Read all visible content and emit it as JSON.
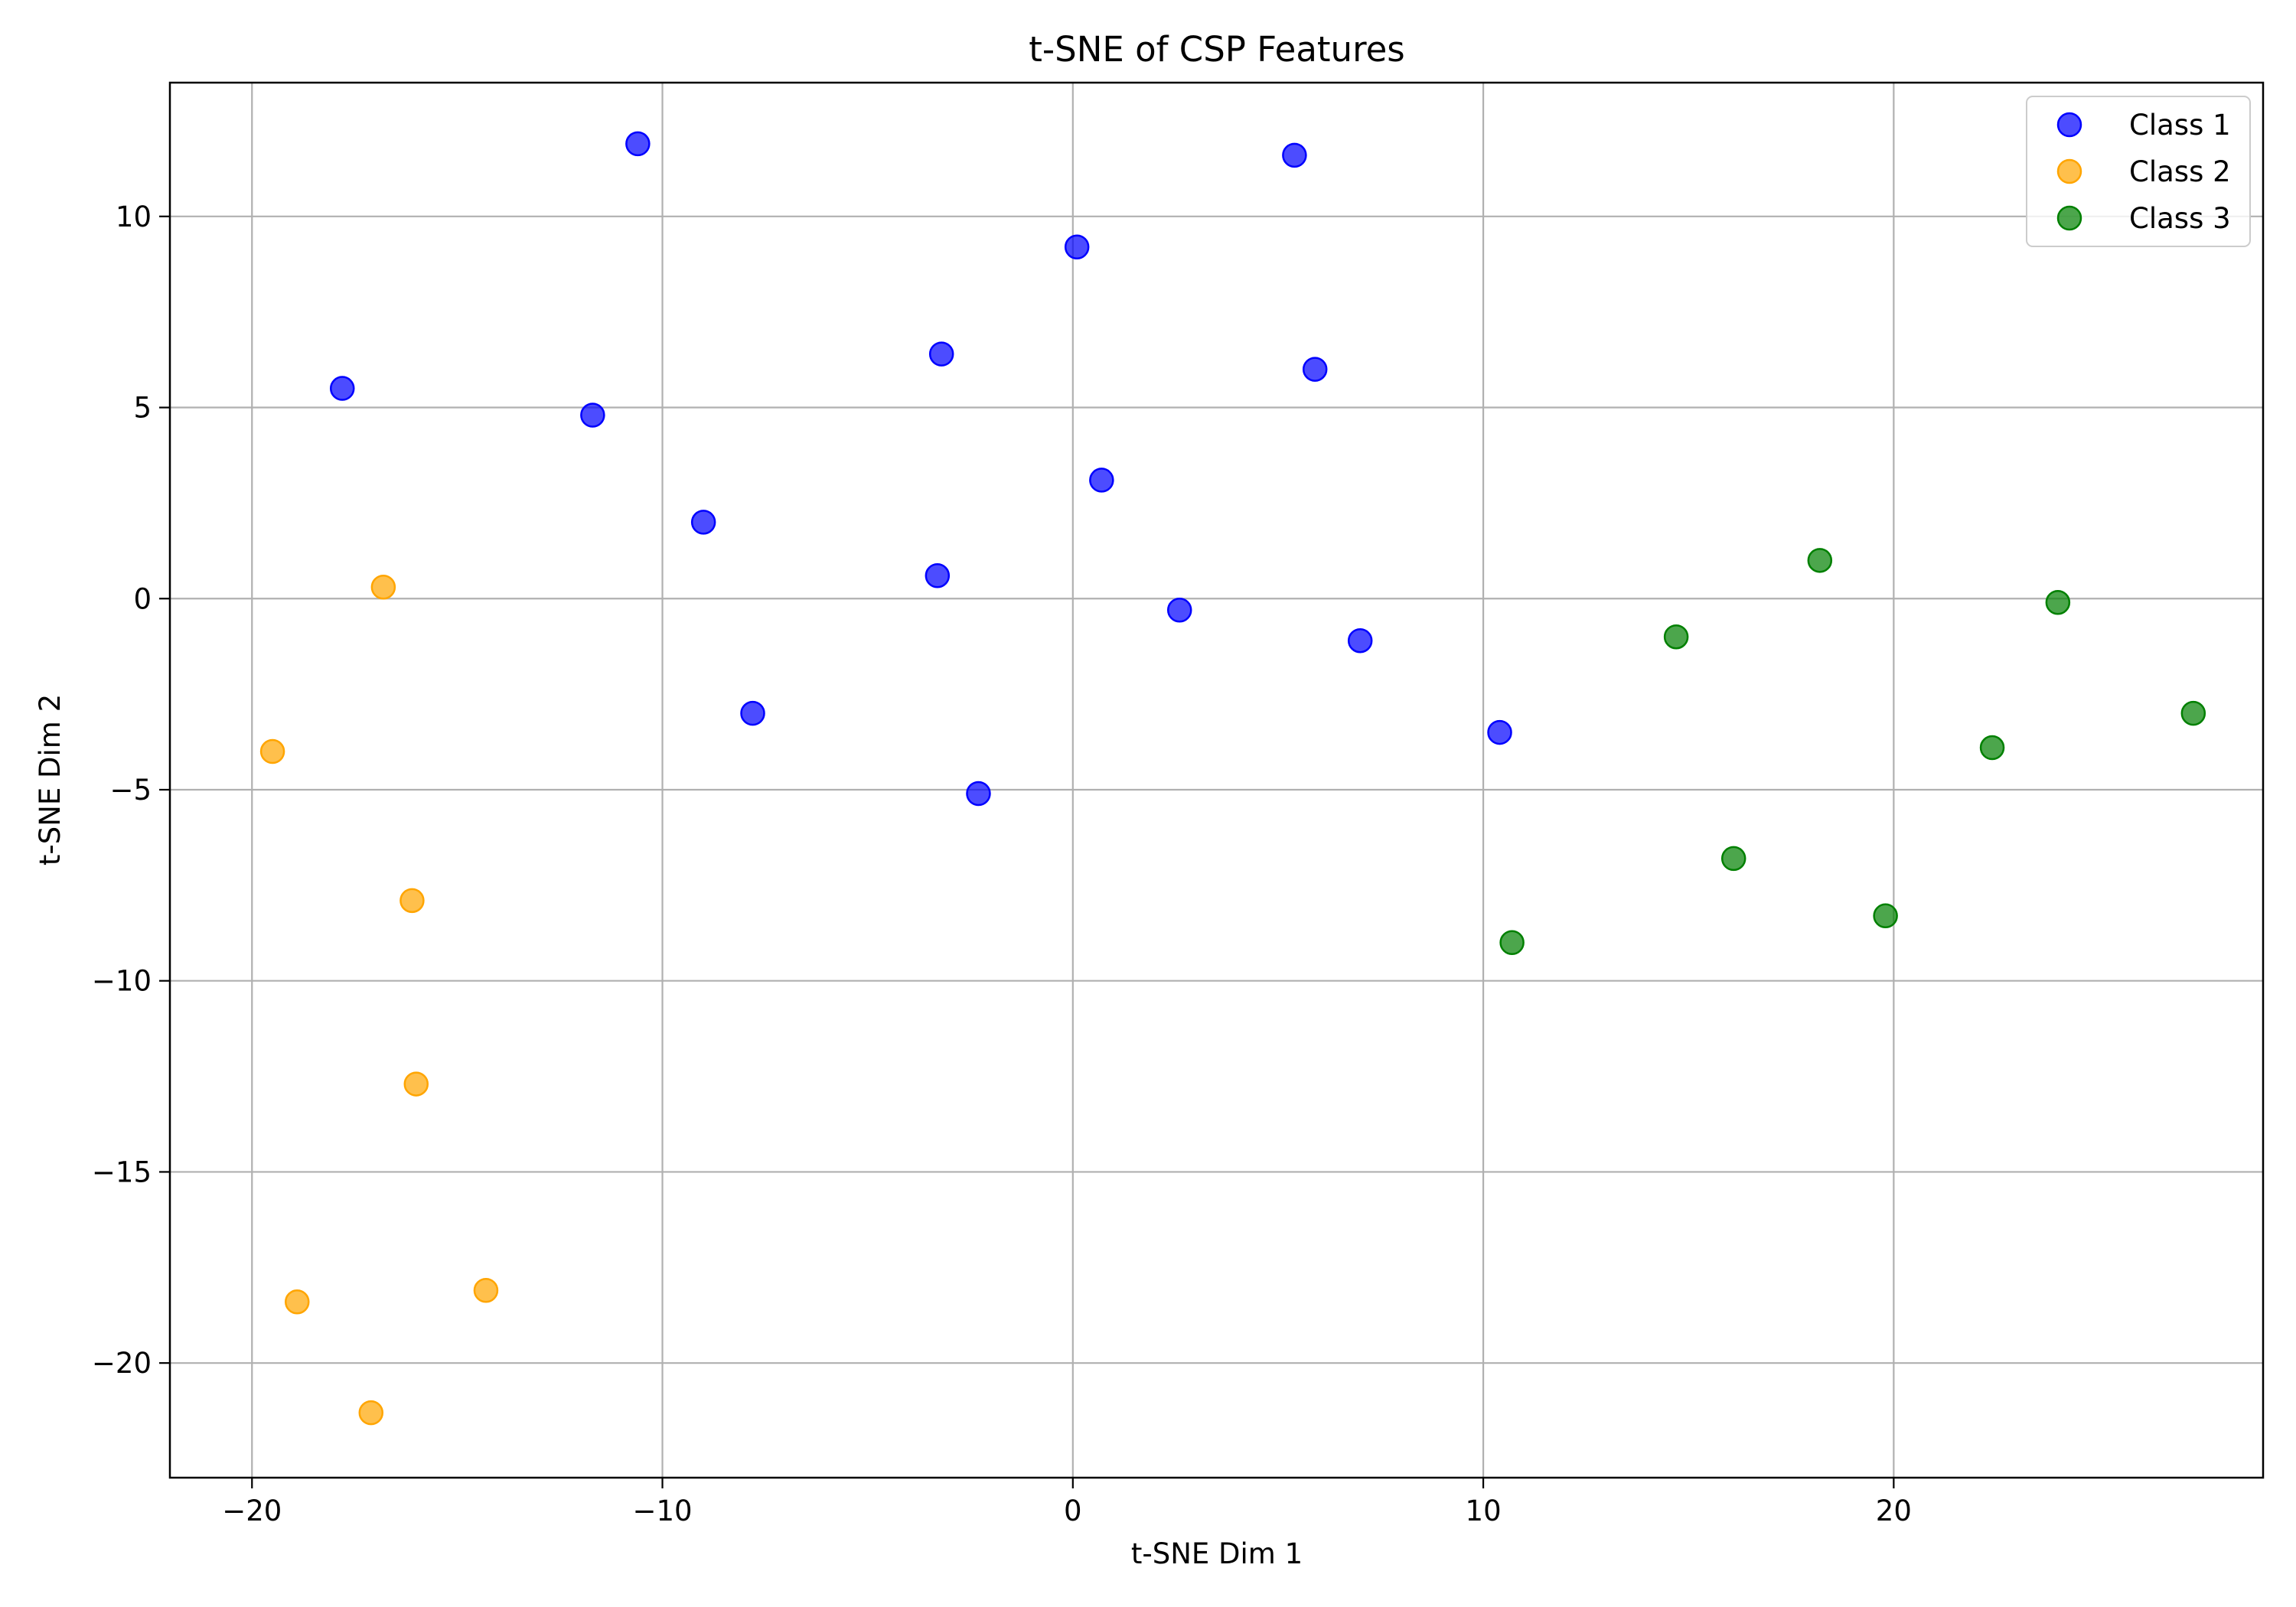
{
  "chart_data": {
    "type": "scatter",
    "title": "t-SNE of CSP Features",
    "xlabel": "t-SNE Dim 1",
    "ylabel": "t-SNE Dim 2",
    "xlim": [
      -22,
      29
    ],
    "ylim": [
      -23,
      13.5
    ],
    "xticks": [
      -20,
      -10,
      0,
      10,
      20
    ],
    "yticks": [
      -20,
      -15,
      -10,
      -5,
      0,
      5,
      10
    ],
    "grid": true,
    "legend_position": "top-right",
    "series": [
      {
        "name": "Class 1",
        "color": "#0000ff",
        "points": [
          [
            -10.6,
            11.9
          ],
          [
            5.4,
            11.6
          ],
          [
            0.1,
            9.2
          ],
          [
            -3.2,
            6.4
          ],
          [
            5.9,
            6.0
          ],
          [
            -17.8,
            5.5
          ],
          [
            -11.7,
            4.8
          ],
          [
            0.7,
            3.1
          ],
          [
            -9.0,
            2.0
          ],
          [
            -3.3,
            0.6
          ],
          [
            2.6,
            -0.3
          ],
          [
            7.0,
            -1.1
          ],
          [
            -7.8,
            -3.0
          ],
          [
            10.4,
            -3.5
          ],
          [
            -2.3,
            -5.1
          ]
        ]
      },
      {
        "name": "Class 2",
        "color": "#ffa500",
        "points": [
          [
            -16.8,
            0.3
          ],
          [
            -19.5,
            -4.0
          ],
          [
            -16.1,
            -7.9
          ],
          [
            -16.0,
            -12.7
          ],
          [
            -14.3,
            -18.1
          ],
          [
            -18.9,
            -18.4
          ],
          [
            -17.1,
            -21.3
          ]
        ]
      },
      {
        "name": "Class 3",
        "color": "#008000",
        "points": [
          [
            18.2,
            1.0
          ],
          [
            24.0,
            -0.1
          ],
          [
            14.7,
            -1.0
          ],
          [
            27.3,
            -3.0
          ],
          [
            22.4,
            -3.9
          ],
          [
            16.1,
            -6.8
          ],
          [
            19.8,
            -8.3
          ],
          [
            10.7,
            -9.0
          ]
        ]
      }
    ]
  }
}
